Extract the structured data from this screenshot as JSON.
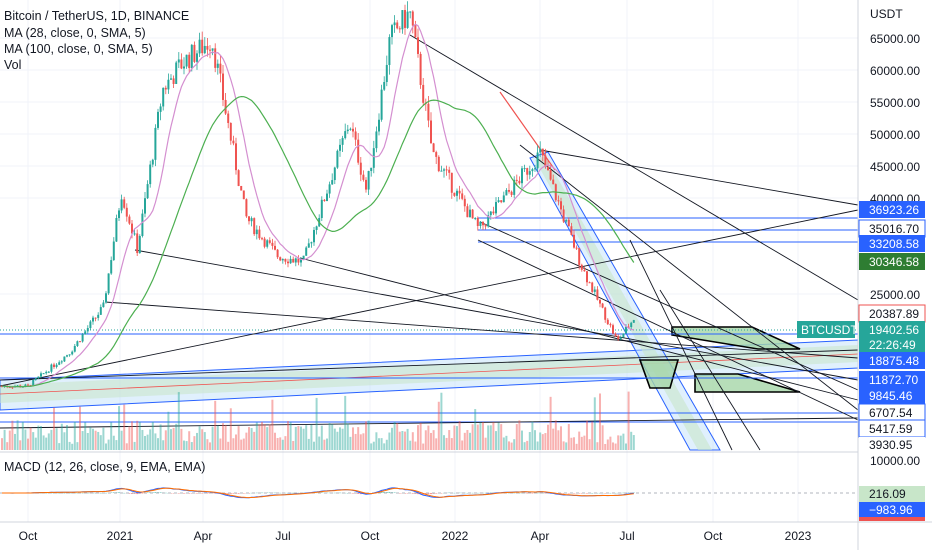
{
  "header": {
    "title": "Bitcoin / TetherUS, 1D, BINANCE",
    "indicators": [
      "MA (28, close, 0, SMA, 5)",
      "MA (100, close, 0, SMA, 5)",
      "Vol"
    ]
  },
  "macd": {
    "label": "MACD (12, 26, close, 9, EMA, EMA)",
    "axis_label": "10000.00",
    "value_signal": "216.09",
    "value_hist": "−983.96"
  },
  "price_axis": {
    "unit": "USDT",
    "ticks": [
      "65000.00",
      "60000.00",
      "55000.00",
      "50000.00",
      "45000.00",
      "40000.00",
      "25000.00"
    ]
  },
  "time_axis": {
    "ticks": [
      "Oct",
      "2021",
      "Apr",
      "Jul",
      "Oct",
      "2022",
      "Apr",
      "Jul",
      "Oct",
      "2023"
    ]
  },
  "levels": [
    {
      "label": "36923.26",
      "style": "blue"
    },
    {
      "label": "35016.70",
      "style": "outline"
    },
    {
      "label": "33208.58",
      "style": "blue"
    },
    {
      "label": "30346.58",
      "style": "green"
    },
    {
      "label": "20387.89",
      "style": "outline"
    },
    {
      "label": "19402.56",
      "style": "outline"
    },
    {
      "label": "18875.48",
      "style": "blue"
    },
    {
      "label": "11872.70",
      "style": "blue"
    },
    {
      "label": "9845.46",
      "style": "blue"
    },
    {
      "label": "6707.54",
      "style": "outline"
    },
    {
      "label": "5417.59",
      "style": "outline"
    },
    {
      "label": "3930.95",
      "style": "outline"
    }
  ],
  "current": {
    "symbol": "BTCUSDT",
    "price": "19402.56",
    "countdown": "22:26:49"
  },
  "colors": {
    "up": "#26a69a",
    "down": "#ef5350",
    "ma28": "#d48fd0",
    "ma100": "#4caf50",
    "line_blue": "#2962ff",
    "macd_line": "#2962ff",
    "signal_line": "#ff6d00",
    "badge_green": "#2e7d32"
  },
  "chart_data": {
    "type": "candlestick",
    "title": "Bitcoin / TetherUS, 1D, BINANCE",
    "y_unit": "USDT",
    "x_range": [
      "2020-09",
      "2023-02"
    ],
    "y_range": [
      3930.95,
      68000
    ],
    "price_path": [
      {
        "date": "2020-10-01",
        "price": 10600
      },
      {
        "date": "2020-11-15",
        "price": 16000
      },
      {
        "date": "2020-12-20",
        "price": 23000
      },
      {
        "date": "2021-01-08",
        "price": 41000
      },
      {
        "date": "2021-01-25",
        "price": 32000
      },
      {
        "date": "2021-02-21",
        "price": 57000
      },
      {
        "date": "2021-03-13",
        "price": 61000
      },
      {
        "date": "2021-04-14",
        "price": 64800
      },
      {
        "date": "2021-05-20",
        "price": 37000
      },
      {
        "date": "2021-06-22",
        "price": 31000
      },
      {
        "date": "2021-07-20",
        "price": 30000
      },
      {
        "date": "2021-09-07",
        "price": 52000
      },
      {
        "date": "2021-09-25",
        "price": 41000
      },
      {
        "date": "2021-10-20",
        "price": 65000
      },
      {
        "date": "2021-11-10",
        "price": 69000
      },
      {
        "date": "2021-12-04",
        "price": 47000
      },
      {
        "date": "2022-01-22",
        "price": 35000
      },
      {
        "date": "2022-03-28",
        "price": 47000
      },
      {
        "date": "2022-05-12",
        "price": 29000
      },
      {
        "date": "2022-06-18",
        "price": 17600
      },
      {
        "date": "2022-07-08",
        "price": 21700
      }
    ],
    "ma_series": [
      {
        "name": "MA (28, close, 0, SMA, 5)"
      },
      {
        "name": "MA (100, close, 0, SMA, 5)"
      }
    ],
    "price_levels": [
      36923.26,
      35016.7,
      33208.58,
      30346.58,
      20387.89,
      19402.56,
      18875.48,
      11872.7,
      9845.46,
      6707.54,
      5417.59,
      3930.95
    ]
  }
}
